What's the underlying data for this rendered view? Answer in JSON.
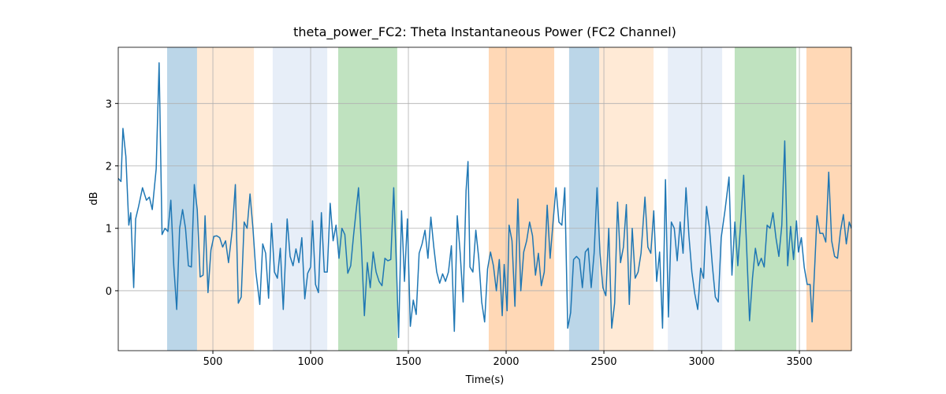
{
  "chart_data": {
    "type": "line",
    "title": "theta_power_FC2: Theta Instantaneous Power (FC2 Channel)",
    "x_label": "Time(s)",
    "y_label": "dB",
    "color": "#1f77b4",
    "xlim": [
      16,
      3766
    ],
    "ylim": [
      -0.96,
      3.9
    ],
    "xticks": [
      500,
      1000,
      1500,
      2000,
      2500,
      3000,
      3500
    ],
    "yticks": [
      0,
      1,
      2,
      3
    ],
    "grid": true,
    "span_alpha": 0.3,
    "spans": [
      {
        "start": 266,
        "end": 419,
        "color": "#1f77b4"
      },
      {
        "start": 419,
        "end": 710,
        "color": "#ffbb78"
      },
      {
        "start": 806,
        "end": 1085,
        "color": "#aec7e8"
      },
      {
        "start": 1141,
        "end": 1443,
        "color": "#2ca02c"
      },
      {
        "start": 1911,
        "end": 2246,
        "color": "#ff7f0e"
      },
      {
        "start": 2322,
        "end": 2476,
        "color": "#1f77b4"
      },
      {
        "start": 2476,
        "end": 2754,
        "color": "#ffbb78"
      },
      {
        "start": 2827,
        "end": 3105,
        "color": "#aec7e8"
      },
      {
        "start": 3169,
        "end": 3484,
        "color": "#2ca02c"
      },
      {
        "start": 3536,
        "end": 3766,
        "color": "#ff7f0e"
      }
    ],
    "x": [
      16,
      30,
      40,
      55,
      70,
      80,
      95,
      105,
      120,
      140,
      160,
      175,
      190,
      210,
      225,
      240,
      255,
      270,
      285,
      300,
      315,
      330,
      345,
      360,
      375,
      390,
      405,
      420,
      435,
      450,
      460,
      475,
      490,
      505,
      520,
      535,
      550,
      565,
      580,
      600,
      615,
      630,
      645,
      660,
      675,
      690,
      705,
      720,
      740,
      755,
      770,
      785,
      800,
      815,
      830,
      845,
      860,
      880,
      895,
      910,
      925,
      940,
      955,
      970,
      985,
      1000,
      1010,
      1025,
      1040,
      1055,
      1070,
      1085,
      1100,
      1115,
      1130,
      1145,
      1160,
      1175,
      1190,
      1205,
      1220,
      1245,
      1260,
      1275,
      1290,
      1305,
      1320,
      1335,
      1350,
      1365,
      1380,
      1395,
      1410,
      1425,
      1440,
      1450,
      1465,
      1480,
      1495,
      1510,
      1525,
      1540,
      1555,
      1570,
      1585,
      1600,
      1615,
      1630,
      1645,
      1660,
      1675,
      1690,
      1705,
      1720,
      1735,
      1750,
      1765,
      1780,
      1795,
      1805,
      1815,
      1830,
      1845,
      1860,
      1875,
      1890,
      1905,
      1920,
      1935,
      1950,
      1965,
      1980,
      1990,
      2005,
      2015,
      2030,
      2045,
      2060,
      2075,
      2090,
      2105,
      2120,
      2135,
      2150,
      2165,
      2180,
      2195,
      2210,
      2225,
      2240,
      2255,
      2270,
      2285,
      2300,
      2315,
      2330,
      2345,
      2360,
      2375,
      2390,
      2405,
      2420,
      2435,
      2450,
      2465,
      2480,
      2495,
      2510,
      2525,
      2540,
      2555,
      2570,
      2585,
      2600,
      2615,
      2630,
      2645,
      2660,
      2675,
      2690,
      2710,
      2725,
      2740,
      2755,
      2770,
      2785,
      2800,
      2815,
      2830,
      2845,
      2860,
      2875,
      2890,
      2905,
      2920,
      2935,
      2950,
      2965,
      2980,
      2995,
      3010,
      3025,
      3040,
      3055,
      3070,
      3085,
      3100,
      3120,
      3140,
      3155,
      3170,
      3185,
      3200,
      3215,
      3230,
      3245,
      3260,
      3275,
      3290,
      3305,
      3320,
      3335,
      3350,
      3365,
      3380,
      3395,
      3410,
      3425,
      3440,
      3455,
      3470,
      3485,
      3495,
      3510,
      3525,
      3540,
      3555,
      3565,
      3580,
      3590,
      3605,
      3620,
      3635,
      3650,
      3665,
      3680,
      3695,
      3710,
      3725,
      3740,
      3755,
      3766
    ],
    "values": [
      1.8,
      1.75,
      2.6,
      2.15,
      1.05,
      1.25,
      0.05,
      1.15,
      1.35,
      1.65,
      1.45,
      1.5,
      1.3,
      1.95,
      3.65,
      0.9,
      1.0,
      0.95,
      1.45,
      0.4,
      -0.3,
      1.0,
      1.3,
      1.0,
      0.4,
      0.38,
      1.7,
      1.3,
      0.22,
      0.25,
      1.2,
      -0.03,
      0.65,
      0.87,
      0.88,
      0.85,
      0.7,
      0.8,
      0.45,
      1.0,
      1.7,
      -0.2,
      -0.1,
      1.1,
      1.0,
      1.55,
      1.0,
      0.3,
      -0.22,
      0.75,
      0.6,
      -0.12,
      1.08,
      0.3,
      0.2,
      0.68,
      -0.3,
      1.15,
      0.55,
      0.4,
      0.67,
      0.45,
      0.85,
      -0.13,
      0.28,
      0.38,
      1.12,
      0.1,
      -0.03,
      1.25,
      0.3,
      0.3,
      1.4,
      0.8,
      1.05,
      0.52,
      1.0,
      0.9,
      0.28,
      0.4,
      0.9,
      1.65,
      0.7,
      -0.4,
      0.45,
      0.05,
      0.62,
      0.3,
      0.15,
      0.08,
      0.52,
      0.48,
      0.5,
      1.65,
      0.3,
      -0.75,
      1.28,
      0.15,
      1.15,
      -0.57,
      -0.15,
      -0.38,
      0.6,
      0.75,
      0.97,
      0.52,
      1.18,
      0.7,
      0.3,
      0.12,
      0.27,
      0.15,
      0.3,
      0.72,
      -0.65,
      1.2,
      0.6,
      -0.18,
      1.6,
      2.07,
      0.38,
      0.3,
      0.97,
      0.52,
      -0.18,
      -0.5,
      0.35,
      0.62,
      0.4,
      0.0,
      0.5,
      -0.4,
      0.42,
      -0.32,
      1.05,
      0.8,
      -0.25,
      1.47,
      0.0,
      0.62,
      0.8,
      1.1,
      0.88,
      0.25,
      0.6,
      0.08,
      0.3,
      1.37,
      0.52,
      1.1,
      1.65,
      1.1,
      1.05,
      1.65,
      -0.6,
      -0.35,
      0.5,
      0.55,
      0.5,
      0.05,
      0.62,
      0.68,
      0.05,
      0.6,
      1.65,
      0.6,
      0.05,
      -0.08,
      1.0,
      -0.6,
      -0.2,
      1.42,
      0.45,
      0.7,
      1.38,
      -0.22,
      1.0,
      0.2,
      0.3,
      0.6,
      1.5,
      0.7,
      0.6,
      1.28,
      0.15,
      0.62,
      -0.6,
      1.78,
      -0.42,
      1.1,
      1.0,
      0.48,
      1.1,
      0.6,
      1.65,
      0.88,
      0.3,
      -0.05,
      -0.3,
      0.36,
      0.2,
      1.35,
      1.0,
      0.4,
      -0.1,
      -0.18,
      0.85,
      1.3,
      1.82,
      0.25,
      1.1,
      0.4,
      1.1,
      1.85,
      0.7,
      -0.48,
      0.2,
      0.68,
      0.4,
      0.52,
      0.38,
      1.05,
      1.0,
      1.25,
      0.85,
      0.55,
      1.05,
      2.4,
      0.4,
      1.03,
      0.5,
      1.12,
      0.62,
      0.85,
      0.37,
      0.1,
      0.1,
      -0.5,
      0.5,
      1.2,
      0.92,
      0.92,
      0.78,
      1.9,
      0.8,
      0.55,
      0.52,
      0.95,
      1.22,
      0.75,
      1.1,
      1.0
    ]
  }
}
